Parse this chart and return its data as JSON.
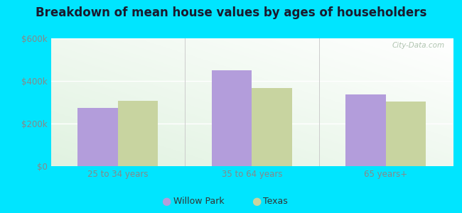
{
  "title": "Breakdown of mean house values by ages of householders",
  "categories": [
    "25 to 34 years",
    "35 to 64 years",
    "65 years+"
  ],
  "willow_park": [
    275000,
    450000,
    338000
  ],
  "texas": [
    308000,
    368000,
    305000
  ],
  "willow_park_color": "#b39ddb",
  "texas_color": "#c8d4a0",
  "bar_width": 0.3,
  "ylim": [
    0,
    600000
  ],
  "yticks": [
    0,
    200000,
    400000,
    600000
  ],
  "ytick_labels": [
    "$0",
    "$200k",
    "$400k",
    "$600k"
  ],
  "legend_willow": "Willow Park",
  "legend_texas": "Texas",
  "title_fontsize": 12,
  "tick_fontsize": 8.5,
  "legend_fontsize": 9,
  "bg_color_outer": "#00e5ff",
  "watermark_text": "City-Data.com"
}
